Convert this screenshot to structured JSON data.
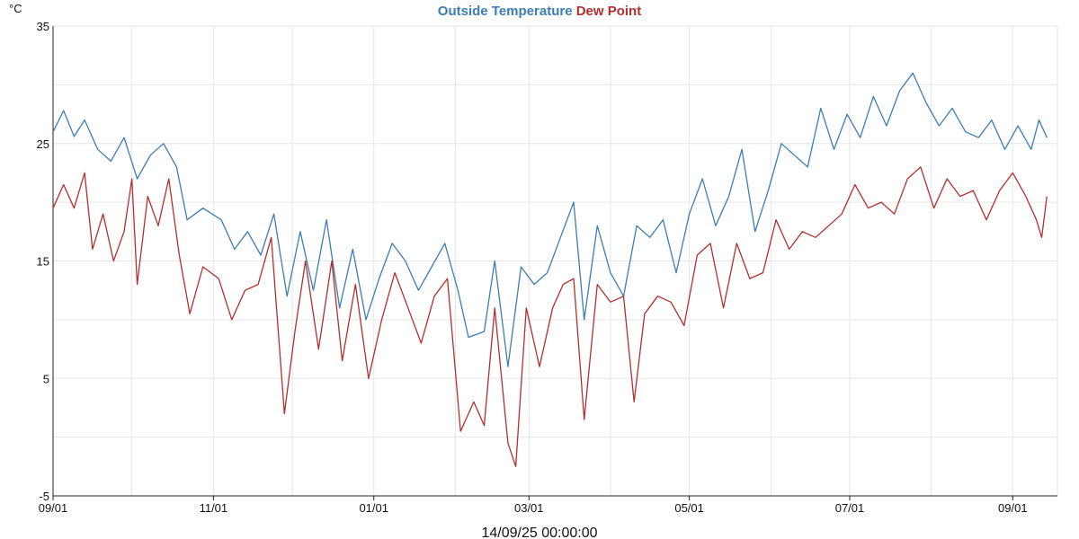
{
  "chart_data": {
    "type": "line",
    "ylabel": "°C",
    "ylim": [
      -5,
      35
    ],
    "y_ticks": [
      -5,
      5,
      15,
      25,
      35
    ],
    "x_start": "2024-09-01",
    "x_end": "2025-09-18",
    "x_ticks": [
      {
        "date": "2024-09-01",
        "label": "09/01"
      },
      {
        "date": "2024-11-01",
        "label": "11/01"
      },
      {
        "date": "2025-01-01",
        "label": "01/01"
      },
      {
        "date": "2025-03-01",
        "label": "03/01"
      },
      {
        "date": "2025-05-01",
        "label": "05/01"
      },
      {
        "date": "2025-07-01",
        "label": "07/01"
      },
      {
        "date": "2025-09-01",
        "label": "09/01"
      }
    ],
    "grid": true,
    "timestamp": "14/09/25 00:00:00",
    "series": [
      {
        "name": "Outside Temperature",
        "color": "#3b7db5",
        "points": [
          [
            "2024-09-01",
            26.0
          ],
          [
            "2024-09-05",
            27.8
          ],
          [
            "2024-09-09",
            25.6
          ],
          [
            "2024-09-13",
            27.0
          ],
          [
            "2024-09-18",
            24.5
          ],
          [
            "2024-09-23",
            23.5
          ],
          [
            "2024-09-28",
            25.5
          ],
          [
            "2024-10-03",
            22.0
          ],
          [
            "2024-10-08",
            24.0
          ],
          [
            "2024-10-13",
            25.0
          ],
          [
            "2024-10-18",
            23.0
          ],
          [
            "2024-10-22",
            18.5
          ],
          [
            "2024-10-28",
            19.5
          ],
          [
            "2024-11-04",
            18.5
          ],
          [
            "2024-11-09",
            16.0
          ],
          [
            "2024-11-14",
            17.5
          ],
          [
            "2024-11-19",
            15.5
          ],
          [
            "2024-11-24",
            19.0
          ],
          [
            "2024-11-29",
            12.0
          ],
          [
            "2024-12-04",
            17.5
          ],
          [
            "2024-12-09",
            12.5
          ],
          [
            "2024-12-14",
            18.5
          ],
          [
            "2024-12-19",
            11.0
          ],
          [
            "2024-12-24",
            16.0
          ],
          [
            "2024-12-29",
            10.0
          ],
          [
            "2025-01-03",
            13.5
          ],
          [
            "2025-01-08",
            16.5
          ],
          [
            "2025-01-13",
            15.0
          ],
          [
            "2025-01-18",
            12.5
          ],
          [
            "2025-01-23",
            14.5
          ],
          [
            "2025-01-28",
            16.5
          ],
          [
            "2025-02-02",
            12.5
          ],
          [
            "2025-02-06",
            8.5
          ],
          [
            "2025-02-12",
            9.0
          ],
          [
            "2025-02-16",
            15.0
          ],
          [
            "2025-02-21",
            6.0
          ],
          [
            "2025-02-26",
            14.5
          ],
          [
            "2025-03-03",
            13.0
          ],
          [
            "2025-03-08",
            14.0
          ],
          [
            "2025-03-13",
            17.0
          ],
          [
            "2025-03-18",
            20.0
          ],
          [
            "2025-03-22",
            10.0
          ],
          [
            "2025-03-27",
            18.0
          ],
          [
            "2025-04-01",
            14.0
          ],
          [
            "2025-04-06",
            12.0
          ],
          [
            "2025-04-11",
            18.0
          ],
          [
            "2025-04-16",
            17.0
          ],
          [
            "2025-04-21",
            18.5
          ],
          [
            "2025-04-26",
            14.0
          ],
          [
            "2025-05-01",
            19.0
          ],
          [
            "2025-05-06",
            22.0
          ],
          [
            "2025-05-11",
            18.0
          ],
          [
            "2025-05-16",
            20.5
          ],
          [
            "2025-05-21",
            24.5
          ],
          [
            "2025-05-26",
            17.5
          ],
          [
            "2025-05-31",
            21.0
          ],
          [
            "2025-06-05",
            25.0
          ],
          [
            "2025-06-10",
            24.0
          ],
          [
            "2025-06-15",
            23.0
          ],
          [
            "2025-06-20",
            28.0
          ],
          [
            "2025-06-25",
            24.5
          ],
          [
            "2025-06-30",
            27.5
          ],
          [
            "2025-07-05",
            25.5
          ],
          [
            "2025-07-10",
            29.0
          ],
          [
            "2025-07-15",
            26.5
          ],
          [
            "2025-07-20",
            29.5
          ],
          [
            "2025-07-25",
            31.0
          ],
          [
            "2025-07-30",
            28.5
          ],
          [
            "2025-08-04",
            26.5
          ],
          [
            "2025-08-09",
            28.0
          ],
          [
            "2025-08-14",
            26.0
          ],
          [
            "2025-08-19",
            25.5
          ],
          [
            "2025-08-24",
            27.0
          ],
          [
            "2025-08-29",
            24.5
          ],
          [
            "2025-09-03",
            26.5
          ],
          [
            "2025-09-08",
            24.5
          ],
          [
            "2025-09-11",
            27.0
          ],
          [
            "2025-09-14",
            25.5
          ]
        ]
      },
      {
        "name": "Dew Point",
        "color": "#b52e2e",
        "points": [
          [
            "2024-09-01",
            19.5
          ],
          [
            "2024-09-05",
            21.5
          ],
          [
            "2024-09-09",
            19.5
          ],
          [
            "2024-09-13",
            22.5
          ],
          [
            "2024-09-16",
            16.0
          ],
          [
            "2024-09-20",
            19.0
          ],
          [
            "2024-09-24",
            15.0
          ],
          [
            "2024-09-28",
            17.5
          ],
          [
            "2024-10-01",
            22.0
          ],
          [
            "2024-10-03",
            13.0
          ],
          [
            "2024-10-07",
            20.5
          ],
          [
            "2024-10-11",
            18.0
          ],
          [
            "2024-10-15",
            22.0
          ],
          [
            "2024-10-19",
            15.5
          ],
          [
            "2024-10-23",
            10.5
          ],
          [
            "2024-10-28",
            14.5
          ],
          [
            "2024-11-03",
            13.5
          ],
          [
            "2024-11-08",
            10.0
          ],
          [
            "2024-11-13",
            12.5
          ],
          [
            "2024-11-18",
            13.0
          ],
          [
            "2024-11-23",
            17.0
          ],
          [
            "2024-11-28",
            2.0
          ],
          [
            "2024-12-02",
            9.0
          ],
          [
            "2024-12-06",
            15.0
          ],
          [
            "2024-12-11",
            7.5
          ],
          [
            "2024-12-16",
            15.0
          ],
          [
            "2024-12-20",
            6.5
          ],
          [
            "2024-12-25",
            13.0
          ],
          [
            "2024-12-30",
            5.0
          ],
          [
            "2025-01-04",
            10.0
          ],
          [
            "2025-01-09",
            14.0
          ],
          [
            "2025-01-14",
            11.0
          ],
          [
            "2025-01-19",
            8.0
          ],
          [
            "2025-01-24",
            12.0
          ],
          [
            "2025-01-29",
            13.5
          ],
          [
            "2025-02-03",
            0.5
          ],
          [
            "2025-02-08",
            3.0
          ],
          [
            "2025-02-12",
            1.0
          ],
          [
            "2025-02-16",
            11.0
          ],
          [
            "2025-02-21",
            -0.5
          ],
          [
            "2025-02-24",
            -2.5
          ],
          [
            "2025-02-28",
            11.0
          ],
          [
            "2025-03-05",
            6.0
          ],
          [
            "2025-03-10",
            11.0
          ],
          [
            "2025-03-14",
            13.0
          ],
          [
            "2025-03-18",
            13.5
          ],
          [
            "2025-03-22",
            1.5
          ],
          [
            "2025-03-27",
            13.0
          ],
          [
            "2025-04-01",
            11.5
          ],
          [
            "2025-04-06",
            12.0
          ],
          [
            "2025-04-10",
            3.0
          ],
          [
            "2025-04-14",
            10.5
          ],
          [
            "2025-04-19",
            12.0
          ],
          [
            "2025-04-24",
            11.5
          ],
          [
            "2025-04-29",
            9.5
          ],
          [
            "2025-05-04",
            15.5
          ],
          [
            "2025-05-09",
            16.5
          ],
          [
            "2025-05-14",
            11.0
          ],
          [
            "2025-05-19",
            16.5
          ],
          [
            "2025-05-24",
            13.5
          ],
          [
            "2025-05-29",
            14.0
          ],
          [
            "2025-06-03",
            18.5
          ],
          [
            "2025-06-08",
            16.0
          ],
          [
            "2025-06-13",
            17.5
          ],
          [
            "2025-06-18",
            17.0
          ],
          [
            "2025-06-23",
            18.0
          ],
          [
            "2025-06-28",
            19.0
          ],
          [
            "2025-07-03",
            21.5
          ],
          [
            "2025-07-08",
            19.5
          ],
          [
            "2025-07-13",
            20.0
          ],
          [
            "2025-07-18",
            19.0
          ],
          [
            "2025-07-23",
            22.0
          ],
          [
            "2025-07-28",
            23.0
          ],
          [
            "2025-08-02",
            19.5
          ],
          [
            "2025-08-07",
            22.0
          ],
          [
            "2025-08-12",
            20.5
          ],
          [
            "2025-08-17",
            21.0
          ],
          [
            "2025-08-22",
            18.5
          ],
          [
            "2025-08-27",
            21.0
          ],
          [
            "2025-09-01",
            22.5
          ],
          [
            "2025-09-06",
            20.5
          ],
          [
            "2025-09-10",
            18.5
          ],
          [
            "2025-09-12",
            17.0
          ],
          [
            "2025-09-14",
            20.5
          ]
        ]
      }
    ]
  }
}
